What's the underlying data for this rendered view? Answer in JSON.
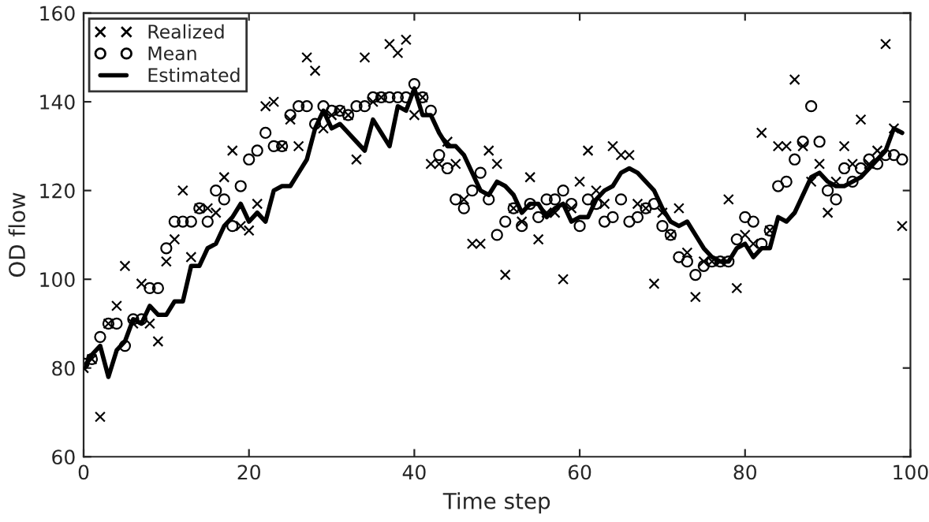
{
  "chart_data": {
    "type": "scatter",
    "xlabel": "Time step",
    "ylabel": "OD flow",
    "xlim": [
      0,
      100
    ],
    "ylim": [
      60,
      160
    ],
    "xticks": [
      0,
      20,
      40,
      60,
      80,
      100
    ],
    "yticks": [
      60,
      80,
      100,
      120,
      140,
      160
    ],
    "legend": "top left",
    "grid": false,
    "x": [
      0,
      1,
      2,
      3,
      4,
      5,
      6,
      7,
      8,
      9,
      10,
      11,
      12,
      13,
      14,
      15,
      16,
      17,
      18,
      19,
      20,
      21,
      22,
      23,
      24,
      25,
      26,
      27,
      28,
      29,
      30,
      31,
      32,
      33,
      34,
      35,
      36,
      37,
      38,
      39,
      40,
      41,
      42,
      43,
      44,
      45,
      46,
      47,
      48,
      49,
      50,
      51,
      52,
      53,
      54,
      55,
      56,
      57,
      58,
      59,
      60,
      61,
      62,
      63,
      64,
      65,
      66,
      67,
      68,
      69,
      70,
      71,
      72,
      73,
      74,
      75,
      76,
      77,
      78,
      79,
      80,
      81,
      82,
      83,
      84,
      85,
      86,
      87,
      88,
      89,
      90,
      91,
      92,
      93,
      94,
      95,
      96,
      97,
      98,
      99
    ],
    "series": [
      {
        "name": "Realized",
        "marker": "cross",
        "color": "#000000",
        "values": [
          80,
          82,
          69,
          90,
          94,
          103,
          90,
          99,
          90,
          86,
          104,
          109,
          120,
          105,
          116,
          116,
          115,
          123,
          129,
          112,
          111,
          117,
          139,
          140,
          130,
          136,
          130,
          150,
          147,
          134,
          137,
          138,
          137,
          127,
          150,
          140,
          141,
          153,
          151,
          154,
          137,
          141,
          126,
          126,
          131,
          126,
          118,
          108,
          108,
          129,
          126,
          101,
          116,
          113,
          123,
          109,
          115,
          115,
          100,
          116,
          122,
          129,
          120,
          117,
          130,
          128,
          128,
          117,
          116,
          99,
          115,
          110,
          116,
          106,
          96,
          104,
          104,
          104,
          118,
          98,
          110,
          108,
          133,
          111,
          130,
          130,
          145,
          130,
          122,
          126,
          115,
          122,
          130,
          126,
          136,
          126,
          129,
          153,
          134,
          112
        ]
      },
      {
        "name": "Mean",
        "marker": "circle",
        "color": "#000000",
        "values": [
          81,
          82,
          87,
          90,
          90,
          85,
          91,
          91,
          98,
          98,
          107,
          113,
          113,
          113,
          116,
          113,
          120,
          118,
          112,
          121,
          127,
          129,
          133,
          130,
          130,
          137,
          139,
          139,
          135,
          139,
          138,
          138,
          137,
          139,
          139,
          141,
          141,
          141,
          141,
          141,
          144,
          141,
          138,
          128,
          125,
          118,
          116,
          120,
          124,
          118,
          110,
          113,
          116,
          112,
          117,
          114,
          118,
          118,
          120,
          117,
          112,
          118,
          117,
          113,
          114,
          118,
          113,
          114,
          116,
          117,
          112,
          110,
          105,
          104,
          101,
          103,
          104,
          104,
          104,
          109,
          114,
          113,
          108,
          111,
          121,
          122,
          127,
          131,
          139,
          131,
          120,
          118,
          125,
          122,
          125,
          127,
          126,
          128,
          128,
          127
        ]
      },
      {
        "name": "Estimated",
        "type": "line",
        "marker": "none",
        "line_style": "solid",
        "color": "#000000",
        "values": [
          80,
          83,
          85,
          78,
          84,
          86,
          91,
          90,
          94,
          92,
          92,
          95,
          95,
          103,
          103,
          107,
          108,
          112,
          114,
          117,
          113,
          115,
          113,
          120,
          121,
          121,
          124,
          127,
          134,
          138,
          134,
          135,
          133,
          131,
          129,
          136,
          133,
          130,
          139,
          138,
          143,
          137,
          137,
          133,
          130,
          130,
          128,
          124,
          120,
          119,
          122,
          121,
          119,
          115,
          117,
          117,
          114,
          116,
          117,
          113,
          114,
          114,
          118,
          120,
          121,
          124,
          125,
          124,
          122,
          120,
          116,
          113,
          112,
          113,
          110,
          107,
          105,
          104,
          104,
          107,
          108,
          105,
          107,
          107,
          114,
          113,
          115,
          119,
          123,
          124,
          122,
          121,
          121,
          122,
          123,
          125,
          127,
          129,
          134,
          133
        ]
      }
    ]
  }
}
